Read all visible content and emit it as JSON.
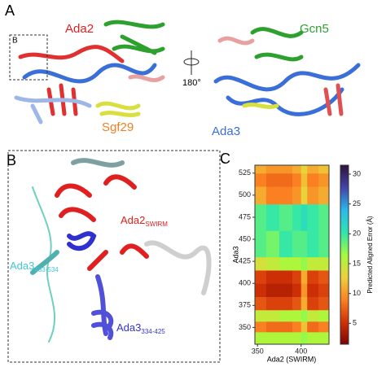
{
  "panel_a": {
    "label": "A",
    "ada2": "Ada2",
    "gcn5": "Gcn5",
    "sgf29": "Sgf29",
    "ada3": "Ada3",
    "rotation": "180°",
    "inset": "B"
  },
  "panel_b": {
    "label": "B",
    "ada2": "Ada2",
    "ada2_sub": "SWIRM",
    "ada3_c": "Ada3",
    "ada3_c_sub": "483-534",
    "ada3_n": "Ada3",
    "ada3_n_sub": "334-425"
  },
  "panel_c": {
    "label": "C"
  },
  "chart_data": {
    "type": "heatmap",
    "x_label": "Ada2 (SWIRM)",
    "y_label": "Ada3",
    "colorbar_label": "Predicted Aligned Error (Å)",
    "x_bins": [
      347,
      360,
      375,
      390,
      400,
      407,
      420,
      432
    ],
    "y_bins": [
      331,
      345,
      357,
      370,
      385,
      400,
      415,
      430,
      460,
      490,
      510,
      525,
      534
    ],
    "z": [
      [
        16,
        16,
        16,
        16,
        17,
        16,
        16
      ],
      [
        9,
        8,
        8,
        9,
        12,
        8,
        9
      ],
      [
        15,
        15,
        16,
        16,
        17,
        15,
        16
      ],
      [
        7,
        6,
        6,
        7,
        11,
        6,
        7
      ],
      [
        5,
        4,
        4,
        5,
        10,
        5,
        6
      ],
      [
        6,
        5,
        5,
        6,
        11,
        6,
        7
      ],
      [
        14,
        15,
        16,
        16,
        17,
        15,
        15
      ],
      [
        19,
        18,
        20,
        19,
        19,
        20,
        19
      ],
      [
        19,
        20,
        19,
        20,
        21,
        20,
        19
      ],
      [
        11,
        9,
        9,
        10,
        13,
        10,
        11
      ],
      [
        9,
        8,
        8,
        9,
        12,
        9,
        10
      ],
      [
        11,
        10,
        10,
        11,
        13,
        11,
        12
      ]
    ],
    "xlim": [
      347,
      432
    ],
    "ylim": [
      331,
      534
    ],
    "xticks": [
      350,
      400
    ],
    "yticks": [
      350,
      375,
      400,
      425,
      450,
      475,
      500,
      525
    ],
    "clim": [
      1.5,
      31.5
    ],
    "cticks": [
      5,
      10,
      15,
      20,
      25,
      30
    ],
    "colormap": [
      "#7a0403",
      "#d23105",
      "#fb8022",
      "#edd03a",
      "#a4fc3c",
      "#2ee5ae",
      "#29bbec",
      "#4145ab",
      "#30123b"
    ]
  }
}
